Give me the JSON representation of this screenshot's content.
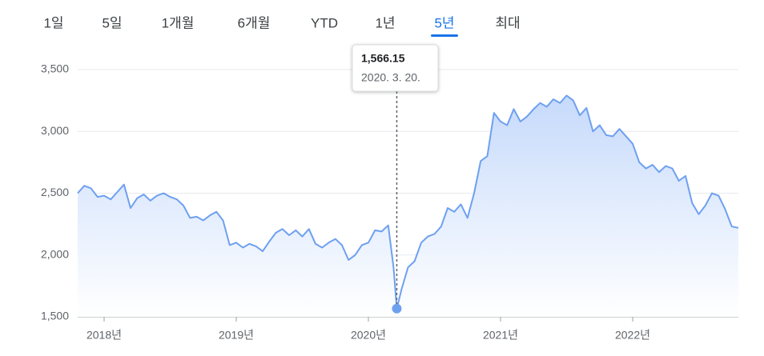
{
  "ranges": {
    "items": [
      "1일",
      "5일",
      "1개월",
      "6개월",
      "YTD",
      "1년",
      "5년",
      "최대"
    ],
    "selected": 6
  },
  "chart_data": {
    "type": "area",
    "x": [
      2017.8,
      2017.85,
      2017.9,
      2017.95,
      2018.0,
      2018.05,
      2018.1,
      2018.15,
      2018.2,
      2018.25,
      2018.3,
      2018.35,
      2018.4,
      2018.45,
      2018.5,
      2018.55,
      2018.6,
      2018.65,
      2018.7,
      2018.75,
      2018.8,
      2018.85,
      2018.9,
      2018.95,
      2019.0,
      2019.05,
      2019.1,
      2019.15,
      2019.2,
      2019.25,
      2019.3,
      2019.35,
      2019.4,
      2019.45,
      2019.5,
      2019.55,
      2019.6,
      2019.65,
      2019.7,
      2019.75,
      2019.8,
      2019.85,
      2019.9,
      2019.95,
      2020.0,
      2020.05,
      2020.1,
      2020.15,
      2020.19,
      2020.215,
      2020.25,
      2020.3,
      2020.35,
      2020.4,
      2020.45,
      2020.5,
      2020.55,
      2020.6,
      2020.65,
      2020.7,
      2020.75,
      2020.8,
      2020.85,
      2020.9,
      2020.95,
      2021.0,
      2021.05,
      2021.1,
      2021.15,
      2021.2,
      2021.25,
      2021.3,
      2021.35,
      2021.4,
      2021.45,
      2021.5,
      2021.55,
      2021.6,
      2021.65,
      2021.7,
      2021.75,
      2021.8,
      2021.85,
      2021.9,
      2021.95,
      2022.0,
      2022.05,
      2022.1,
      2022.15,
      2022.2,
      2022.25,
      2022.3,
      2022.35,
      2022.4,
      2022.45,
      2022.5,
      2022.55,
      2022.6,
      2022.65,
      2022.7,
      2022.75,
      2022.8
    ],
    "series": [
      {
        "color": "#6ea0f0",
        "values": [
          2500,
          2560,
          2540,
          2470,
          2480,
          2450,
          2510,
          2570,
          2380,
          2460,
          2490,
          2440,
          2480,
          2500,
          2470,
          2450,
          2400,
          2300,
          2310,
          2280,
          2320,
          2350,
          2280,
          2080,
          2100,
          2060,
          2090,
          2070,
          2030,
          2110,
          2180,
          2210,
          2160,
          2200,
          2150,
          2210,
          2090,
          2060,
          2100,
          2130,
          2080,
          1960,
          2000,
          2080,
          2100,
          2200,
          2190,
          2240,
          1900,
          1566.15,
          1720,
          1900,
          1950,
          2100,
          2150,
          2170,
          2230,
          2380,
          2350,
          2410,
          2300,
          2500,
          2760,
          2800,
          3150,
          3080,
          3050,
          3180,
          3080,
          3120,
          3180,
          3230,
          3200,
          3260,
          3230,
          3290,
          3250,
          3130,
          3190,
          3000,
          3050,
          2970,
          2960,
          3020,
          2960,
          2900,
          2750,
          2700,
          2730,
          2670,
          2720,
          2700,
          2600,
          2640,
          2420,
          2330,
          2400,
          2500,
          2480,
          2370,
          2230,
          2220
        ]
      }
    ],
    "xlim": [
      2017.8,
      2022.8
    ],
    "xticks": [
      {
        "value": 2018,
        "label": "2018년"
      },
      {
        "value": 2019,
        "label": "2019년"
      },
      {
        "value": 2020,
        "label": "2020년"
      },
      {
        "value": 2021,
        "label": "2021년"
      },
      {
        "value": 2022,
        "label": "2022년"
      }
    ],
    "ylim": [
      1500,
      3500
    ],
    "yticks": [
      {
        "value": 1500,
        "label": "1,500"
      },
      {
        "value": 2000,
        "label": "2,000"
      },
      {
        "value": 2500,
        "label": "2,500"
      },
      {
        "value": 3000,
        "label": "3,000"
      },
      {
        "value": 3500,
        "label": "3,500"
      }
    ],
    "grid": true,
    "tooltip": {
      "x": 2020.215,
      "y": 1566.15,
      "label": "1,566.15",
      "date": "2020. 3. 20."
    }
  }
}
